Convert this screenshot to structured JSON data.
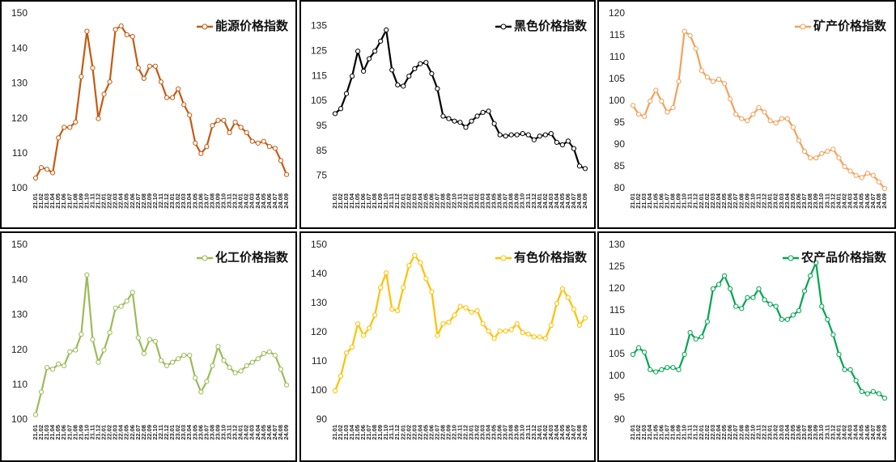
{
  "chart_data": [
    {
      "type": "line",
      "legend": "upper right",
      "grid": false,
      "categories": [
        "21.01",
        "21.02",
        "21.03",
        "21.04",
        "21.05",
        "21.06",
        "21.07",
        "21.08",
        "21.09",
        "21.10",
        "21.11",
        "21.12",
        "22.01",
        "22.02",
        "22.03",
        "22.04",
        "22.05",
        "22.06",
        "22.07",
        "22.08",
        "22.09",
        "22.10",
        "22.11",
        "22.12",
        "23.01",
        "23.02",
        "23.03",
        "23.04",
        "23.05",
        "23.06",
        "23.07",
        "23.08",
        "23.09",
        "23.10",
        "23.11",
        "23.12",
        "24.01",
        "24.02",
        "24.03",
        "24.04",
        "24.05",
        "24.06",
        "24.07",
        "24.08",
        "24.09"
      ],
      "series": [
        {
          "name": "能源价格指数",
          "color": "#c55a11",
          "values": [
            103,
            106,
            105.5,
            104.5,
            114.5,
            117.5,
            117.5,
            119,
            132,
            145,
            134.5,
            120,
            127,
            130.5,
            145.5,
            146.5,
            144,
            143.5,
            134.5,
            131.5,
            135,
            135,
            130.5,
            126,
            126,
            128.5,
            124,
            121,
            113,
            110,
            112,
            118,
            119.5,
            119.5,
            116,
            119,
            117.5,
            116,
            113.5,
            113,
            113.5,
            112,
            111.5,
            108,
            104
          ]
        }
      ],
      "ylim": [
        100,
        150
      ],
      "yticks": [
        100,
        110,
        120,
        130,
        140,
        150
      ]
    },
    {
      "type": "line",
      "legend": "upper right",
      "grid": false,
      "categories": [
        "21.01",
        "21.02",
        "21.03",
        "21.04",
        "21.05",
        "21.06",
        "21.07",
        "21.08",
        "21.09",
        "21.10",
        "21.11",
        "21.12",
        "22.01",
        "22.02",
        "22.03",
        "22.04",
        "22.05",
        "22.06",
        "22.07",
        "22.08",
        "22.09",
        "22.10",
        "22.11",
        "22.12",
        "23.01",
        "23.02",
        "23.03",
        "23.04",
        "23.05",
        "23.06",
        "23.07",
        "23.08",
        "23.09",
        "23.10",
        "23.11",
        "23.12",
        "24.01",
        "24.02",
        "24.03",
        "24.04",
        "24.05",
        "24.06",
        "24.07",
        "24.08",
        "24.09"
      ],
      "series": [
        {
          "name": "黑色价格指数",
          "color": "#000000",
          "values": [
            100,
            102,
            108,
            115,
            125,
            117,
            122,
            125,
            129,
            133.5,
            117.5,
            111.5,
            111,
            115,
            118,
            120,
            120.5,
            116,
            110,
            99,
            98,
            97,
            96.5,
            94.5,
            97,
            99,
            100.5,
            101,
            96,
            91.5,
            91,
            91.5,
            91.5,
            92,
            91.5,
            89.5,
            91,
            91.5,
            92,
            88.5,
            87.5,
            89,
            86,
            79,
            78
          ]
        }
      ],
      "ylim": [
        70,
        140
      ],
      "yticks": [
        75,
        85,
        95,
        105,
        115,
        125,
        135
      ]
    },
    {
      "type": "line",
      "legend": "upper right",
      "grid": false,
      "categories": [
        "21.01",
        "21.02",
        "21.03",
        "21.04",
        "21.05",
        "21.06",
        "21.07",
        "21.08",
        "21.09",
        "21.10",
        "21.11",
        "21.12",
        "22.01",
        "22.02",
        "22.03",
        "22.04",
        "22.05",
        "22.06",
        "22.07",
        "22.08",
        "22.09",
        "22.10",
        "22.11",
        "22.12",
        "23.01",
        "23.02",
        "23.03",
        "23.04",
        "23.05",
        "23.06",
        "23.07",
        "23.08",
        "23.09",
        "23.10",
        "23.11",
        "23.12",
        "24.01",
        "24.02",
        "24.03",
        "24.04",
        "24.05",
        "24.06",
        "24.07",
        "24.08",
        "24.09"
      ],
      "series": [
        {
          "name": "矿产价格指数",
          "color": "#f4a05a",
          "values": [
            99,
            97,
            96.5,
            100,
            102.5,
            100,
            97.5,
            98.5,
            104.5,
            116,
            115,
            112,
            107,
            105.5,
            104.5,
            105,
            104,
            100.5,
            97,
            96,
            95.5,
            97,
            98.5,
            97.5,
            95.5,
            95,
            96,
            96,
            94,
            91,
            88.5,
            87,
            87,
            88,
            88.5,
            89,
            87,
            85,
            84,
            83,
            82.5,
            83.5,
            83,
            81.5,
            80
          ]
        }
      ],
      "ylim": [
        80,
        120
      ],
      "yticks": [
        80,
        85,
        90,
        95,
        100,
        105,
        110,
        115,
        120
      ]
    },
    {
      "type": "line",
      "legend": "upper right",
      "grid": false,
      "categories": [
        "21.01",
        "21.02",
        "21.03",
        "21.04",
        "21.05",
        "21.06",
        "21.07",
        "21.08",
        "21.09",
        "21.10",
        "21.11",
        "21.12",
        "22.01",
        "22.02",
        "22.03",
        "22.04",
        "22.05",
        "22.06",
        "22.07",
        "22.08",
        "22.09",
        "22.10",
        "22.11",
        "22.12",
        "23.01",
        "23.02",
        "23.03",
        "23.04",
        "23.05",
        "23.06",
        "23.07",
        "23.08",
        "23.09",
        "23.10",
        "23.11",
        "23.12",
        "24.01",
        "24.02",
        "24.03",
        "24.04",
        "24.05",
        "24.06",
        "24.07",
        "24.08",
        "24.09"
      ],
      "series": [
        {
          "name": "化工价格指数",
          "color": "#9bbb59",
          "values": [
            101.5,
            108,
            115,
            114.5,
            116,
            115.5,
            119.5,
            120,
            124.5,
            141.5,
            123,
            116.5,
            120,
            125,
            132,
            132.5,
            134,
            136.5,
            123.5,
            119,
            123,
            122.5,
            117,
            115.5,
            116.5,
            117.5,
            118.5,
            118.5,
            112,
            108,
            111,
            115.5,
            121,
            117,
            115,
            113.5,
            114,
            115.5,
            116.5,
            117.5,
            119,
            119.5,
            118.5,
            114.5,
            110
          ]
        }
      ],
      "ylim": [
        100,
        150
      ],
      "yticks": [
        100,
        110,
        120,
        130,
        140,
        150
      ]
    },
    {
      "type": "line",
      "legend": "upper right",
      "grid": false,
      "categories": [
        "21.01",
        "21.02",
        "21.03",
        "21.04",
        "21.05",
        "21.06",
        "21.07",
        "21.08",
        "21.09",
        "21.10",
        "21.11",
        "21.12",
        "22.01",
        "22.02",
        "22.03",
        "22.04",
        "22.05",
        "22.06",
        "22.07",
        "22.08",
        "22.09",
        "22.10",
        "22.11",
        "22.12",
        "23.01",
        "23.02",
        "23.03",
        "23.04",
        "23.05",
        "23.06",
        "23.07",
        "23.08",
        "23.09",
        "23.10",
        "23.11",
        "23.12",
        "24.01",
        "24.02",
        "24.03",
        "24.04",
        "24.05",
        "24.06",
        "24.07",
        "24.08",
        "24.09"
      ],
      "series": [
        {
          "name": "有色价格指数",
          "color": "#ffc000",
          "values": [
            100,
            105,
            113,
            115,
            123,
            119,
            121.5,
            126,
            135.5,
            140.5,
            128,
            127.5,
            135.5,
            143,
            146.5,
            144,
            138.5,
            134,
            119,
            123,
            123.5,
            126,
            129,
            128.5,
            127,
            127.5,
            123,
            120.5,
            118,
            120.5,
            120.5,
            121,
            123,
            120,
            119.5,
            118.5,
            118.5,
            118,
            122.5,
            130,
            135,
            132,
            128,
            122.5,
            125
          ]
        }
      ],
      "ylim": [
        90,
        150
      ],
      "yticks": [
        90,
        100,
        110,
        120,
        130,
        140,
        150
      ]
    },
    {
      "type": "line",
      "legend": "upper right",
      "grid": false,
      "categories": [
        "21.01",
        "21.02",
        "21.03",
        "21.04",
        "21.05",
        "21.06",
        "21.07",
        "21.08",
        "21.09",
        "21.10",
        "21.11",
        "21.12",
        "22.01",
        "22.02",
        "22.03",
        "22.04",
        "22.05",
        "22.06",
        "22.07",
        "22.08",
        "22.09",
        "22.10",
        "22.11",
        "22.12",
        "23.01",
        "23.02",
        "23.03",
        "23.04",
        "23.05",
        "23.06",
        "23.07",
        "23.08",
        "23.09",
        "23.10",
        "23.11",
        "23.12",
        "24.01",
        "24.02",
        "24.03",
        "24.04",
        "24.05",
        "24.06",
        "24.07",
        "24.08",
        "24.09"
      ],
      "series": [
        {
          "name": "农产品价格指数",
          "color": "#00a550",
          "values": [
            105,
            106.5,
            105.5,
            101.5,
            101,
            101.5,
            102,
            102,
            101.5,
            105,
            110,
            108.5,
            109,
            112.5,
            120,
            121,
            123,
            120,
            116,
            115.5,
            118,
            118,
            120,
            117.5,
            116.5,
            116,
            113,
            113,
            114,
            115,
            119.5,
            123,
            126,
            116,
            113,
            109.5,
            105,
            101.5,
            101.5,
            99,
            96.5,
            96,
            96.5,
            96,
            95
          ]
        }
      ],
      "ylim": [
        90,
        130
      ],
      "yticks": [
        90,
        95,
        100,
        105,
        110,
        115,
        120,
        125,
        130
      ]
    }
  ]
}
